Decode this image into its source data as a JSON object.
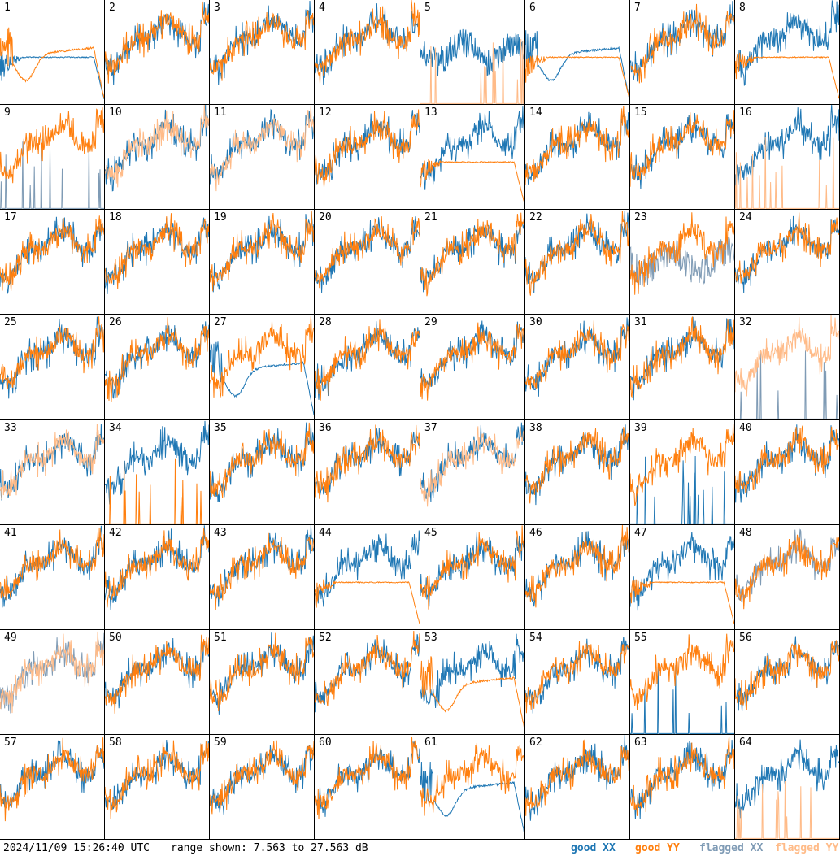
{
  "chart_data": {
    "type": "line",
    "title": "",
    "panel_labels": [
      "1",
      "2",
      "3",
      "4",
      "5",
      "6",
      "7",
      "8",
      "9",
      "10",
      "11",
      "12",
      "13",
      "14",
      "15",
      "16",
      "17",
      "18",
      "19",
      "20",
      "21",
      "22",
      "23",
      "24",
      "25",
      "26",
      "27",
      "28",
      "29",
      "30",
      "31",
      "32",
      "33",
      "34",
      "35",
      "36",
      "37",
      "38",
      "39",
      "40",
      "41",
      "42",
      "43",
      "44",
      "45",
      "46",
      "47",
      "48",
      "49",
      "50",
      "51",
      "52",
      "53",
      "54",
      "55",
      "56",
      "57",
      "58",
      "59",
      "60",
      "61",
      "62",
      "63",
      "64"
    ],
    "y_range_db": [
      7.563,
      27.563
    ],
    "series": [
      {
        "name": "good XX",
        "color": "#1f77b4"
      },
      {
        "name": "good YY",
        "color": "#ff7f0e"
      },
      {
        "name": "flagged XX",
        "color": "#7f9bb5"
      },
      {
        "name": "flagged YY",
        "color": "#ffbb88"
      }
    ],
    "panel_styles": {
      "1": {
        "x": "flat",
        "y": "sag",
        "flag_x": false,
        "flag_y": false
      },
      "5": {
        "x": "noisy",
        "y": "spikes",
        "flag_x": false,
        "flag_y": true
      },
      "6": {
        "x": "sag",
        "y": "flat",
        "flag_x": false,
        "flag_y": false
      },
      "8": {
        "x": "normal",
        "y": "flat",
        "flag_x": false,
        "flag_y": false
      },
      "9": {
        "x": "spikes",
        "y": "normal",
        "flag_x": true,
        "flag_y": false
      },
      "10": {
        "x": "normal",
        "y": "normal",
        "flag_x": false,
        "flag_y": true
      },
      "11": {
        "x": "normal",
        "y": "normal",
        "flag_x": false,
        "flag_y": true
      },
      "13": {
        "x": "normal",
        "y": "flat",
        "flag_x": false,
        "flag_y": false
      },
      "16": {
        "x": "normal",
        "y": "spikes",
        "flag_x": false,
        "flag_y": true
      },
      "23": {
        "x": "noisy",
        "y": "normal",
        "flag_x": true,
        "flag_y": false
      },
      "27": {
        "x": "sag",
        "y": "normal",
        "flag_x": false,
        "flag_y": false
      },
      "32": {
        "x": "spikes",
        "y": "normal",
        "flag_x": true,
        "flag_y": true
      },
      "33": {
        "x": "normal",
        "y": "normal",
        "flag_x": false,
        "flag_y": true
      },
      "34": {
        "x": "normal",
        "y": "spikes",
        "flag_x": false,
        "flag_y": false
      },
      "37": {
        "x": "normal",
        "y": "normal",
        "flag_x": false,
        "flag_y": true
      },
      "39": {
        "x": "spikes",
        "y": "normal",
        "flag_x": false,
        "flag_y": false
      },
      "44": {
        "x": "normal",
        "y": "flat",
        "flag_x": false,
        "flag_y": false
      },
      "47": {
        "x": "normal",
        "y": "flat",
        "flag_x": false,
        "flag_y": false
      },
      "48": {
        "x": "normal",
        "y": "normal",
        "flag_x": true,
        "flag_y": false
      },
      "49": {
        "x": "normal",
        "y": "normal",
        "flag_x": true,
        "flag_y": true
      },
      "53": {
        "x": "normal",
        "y": "sag",
        "flag_x": false,
        "flag_y": false
      },
      "55": {
        "x": "spikes",
        "y": "normal",
        "flag_x": false,
        "flag_y": false
      },
      "61": {
        "x": "sag",
        "y": "normal",
        "flag_x": false,
        "flag_y": false
      },
      "64": {
        "x": "normal",
        "y": "spikes",
        "flag_x": false,
        "flag_y": true
      }
    },
    "grid": false,
    "legend_placement": "bottom-right"
  },
  "footer": {
    "timestamp": "2024/11/09 15:26:40 UTC",
    "range_text": "range shown: 7.563 to 27.563 dB",
    "legend": {
      "good_xx": "good XX",
      "good_yy": "good YY",
      "flagged_xx": "flagged XX",
      "flagged_yy": "flagged YY"
    },
    "colors": {
      "good_xx": "#1f77b4",
      "good_yy": "#ff7f0e",
      "flagged_xx": "#7f9bb5",
      "flagged_yy": "#ffbb88"
    }
  }
}
